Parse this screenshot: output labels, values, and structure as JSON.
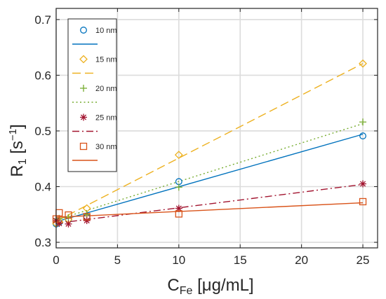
{
  "chart_data": {
    "type": "scatter",
    "xlabel_main": "C",
    "xlabel_sub": "Fe",
    "xlabel_unit": " [μg/mL]",
    "ylabel_main": "R",
    "ylabel_sub": "1",
    "ylabel_unit_open": " [s",
    "ylabel_sup": "−1",
    "ylabel_unit_close": "]",
    "xlim": [
      0,
      26.2
    ],
    "ylim": [
      0.29,
      0.72
    ],
    "xticks": [
      0,
      5,
      10,
      15,
      20,
      25
    ],
    "yticks": [
      0.3,
      0.4,
      0.5,
      0.6,
      0.7
    ],
    "xtick_labels": [
      "0",
      "5",
      "10",
      "15",
      "20",
      "25"
    ],
    "ytick_labels": [
      "0.3",
      "0.4",
      "0.5",
      "0.6",
      "0.7"
    ],
    "grid": true,
    "legend_position": "top-left",
    "series": [
      {
        "name": "10 nm",
        "color": "#0072BD",
        "marker": "circle",
        "line_style": "solid",
        "points": [
          [
            0,
            0.333
          ],
          [
            0.25,
            0.336
          ],
          [
            1,
            0.341
          ],
          [
            2.5,
            0.345
          ],
          [
            10,
            0.409
          ],
          [
            25,
            0.491
          ]
        ],
        "fit": [
          [
            0,
            0.337
          ],
          [
            25,
            0.494
          ]
        ]
      },
      {
        "name": "15 nm",
        "color": "#EDB120",
        "marker": "diamond",
        "line_style": "dashed",
        "points": [
          [
            0,
            0.334
          ],
          [
            0.25,
            0.337
          ],
          [
            1,
            0.341
          ],
          [
            2.5,
            0.361
          ],
          [
            10,
            0.457
          ],
          [
            25,
            0.621
          ]
        ],
        "fit": [
          [
            0,
            0.338
          ],
          [
            25,
            0.621
          ]
        ]
      },
      {
        "name": "20 nm",
        "color": "#77AC30",
        "marker": "plus",
        "line_style": "dotted",
        "points": [
          [
            0,
            0.342
          ],
          [
            0.25,
            0.343
          ],
          [
            1,
            0.344
          ],
          [
            2.5,
            0.35
          ],
          [
            10,
            0.399
          ],
          [
            25,
            0.516
          ]
        ],
        "fit": [
          [
            0,
            0.34
          ],
          [
            25,
            0.513
          ]
        ]
      },
      {
        "name": "25 nm",
        "color": "#A2142F",
        "marker": "asterisk",
        "line_style": "dashdot",
        "points": [
          [
            0,
            0.339
          ],
          [
            0.25,
            0.334
          ],
          [
            1,
            0.333
          ],
          [
            2.5,
            0.339
          ],
          [
            10,
            0.361
          ],
          [
            25,
            0.405
          ]
        ],
        "fit": [
          [
            0,
            0.334
          ],
          [
            25,
            0.404
          ]
        ]
      },
      {
        "name": "30 nm",
        "color": "#D95319",
        "marker": "square",
        "line_style": "solid",
        "points": [
          [
            0,
            0.342
          ],
          [
            0.25,
            0.353
          ],
          [
            1,
            0.349
          ],
          [
            2.5,
            0.346
          ],
          [
            10,
            0.351
          ],
          [
            25,
            0.373
          ]
        ],
        "fit": [
          [
            0,
            0.345
          ],
          [
            25,
            0.371
          ]
        ]
      }
    ]
  }
}
